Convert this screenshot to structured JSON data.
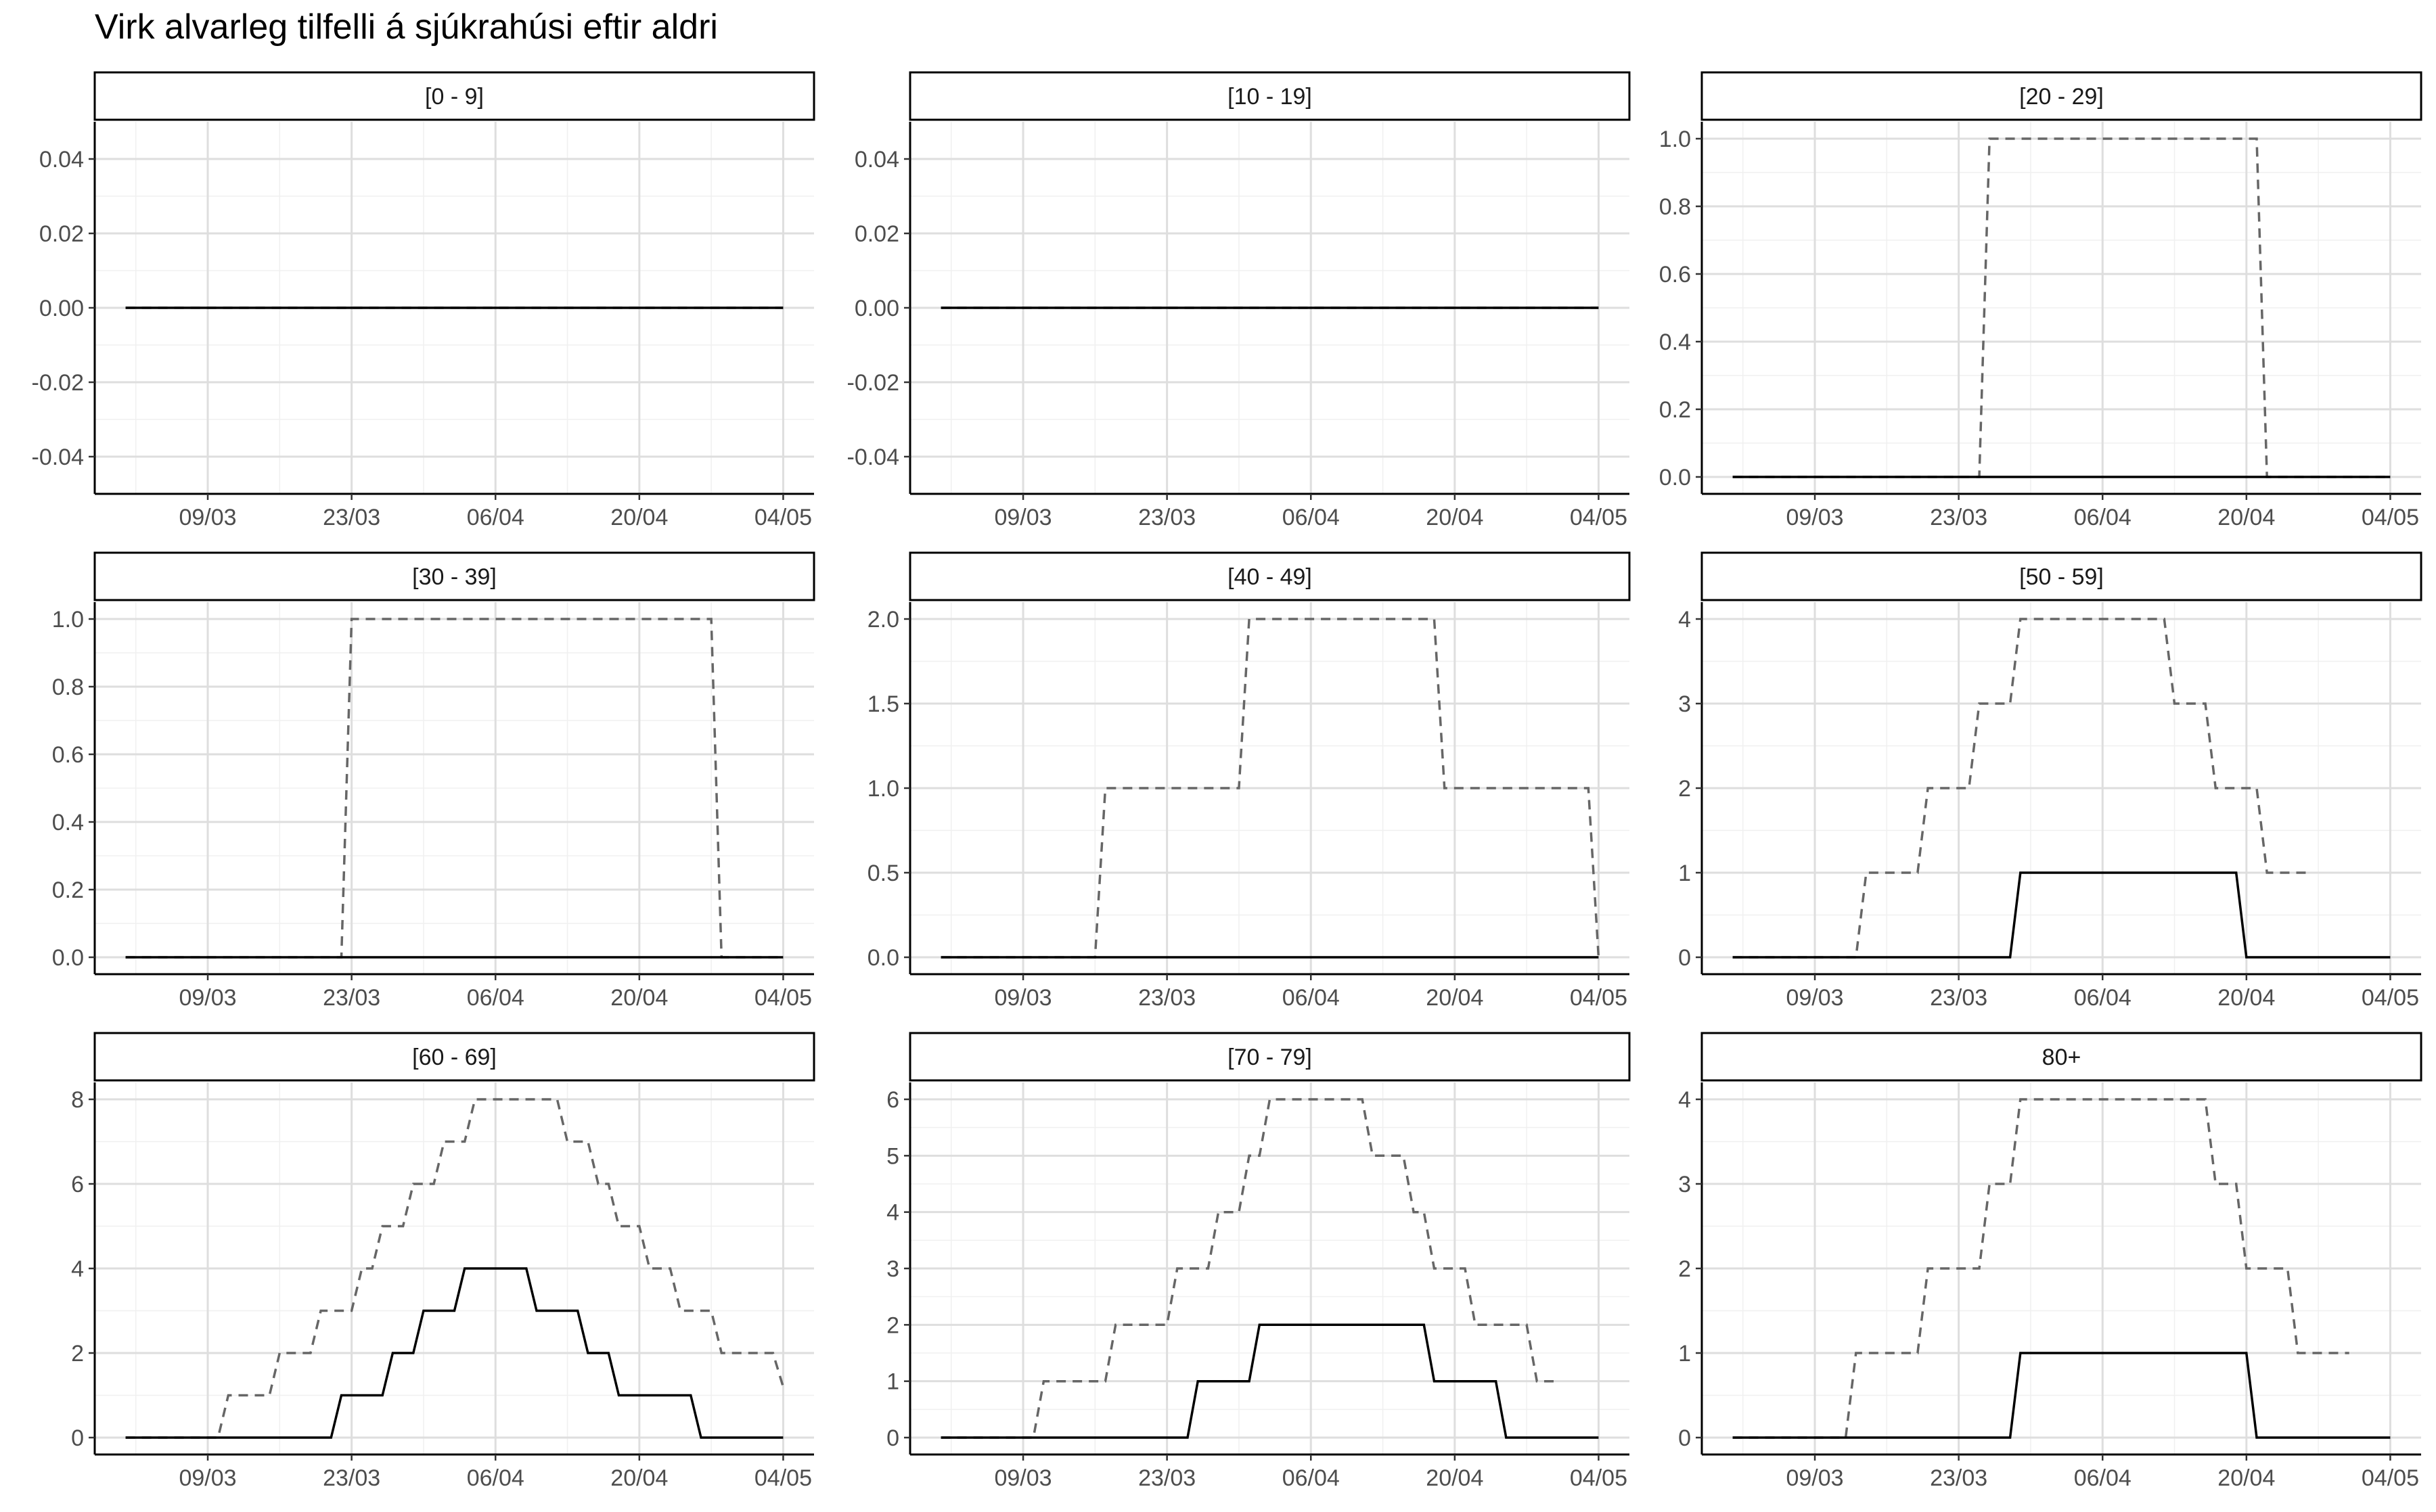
{
  "title": "Virk alvarleg tilfelli á sjúkrahúsi eftir aldri",
  "chart_data": {
    "type": "line",
    "title": "Virk alvarleg tilfelli á sjúkrahúsi eftir aldri",
    "xlabel": "",
    "ylabel": "",
    "x_ticks": [
      "09/03",
      "23/03",
      "06/04",
      "20/04",
      "04/05"
    ],
    "x_tick_days": [
      9,
      23,
      37,
      51,
      65
    ],
    "xlim": [
      -2,
      68
    ],
    "grid": true,
    "legend": "none",
    "series_styles": [
      {
        "key": "dashed",
        "color": "#666666",
        "dash": "solid-dash"
      },
      {
        "key": "solid",
        "color": "#000000",
        "dash": "none"
      }
    ],
    "panels": [
      {
        "label": "[0 - 9]",
        "ylim": [
          -0.05,
          0.05
        ],
        "yticks": [
          "-0.04",
          "-0.02",
          "0.00",
          "0.02",
          "0.04"
        ],
        "ytick_values": [
          -0.04,
          -0.02,
          0.0,
          0.02,
          0.04
        ],
        "dashed": [
          [
            1,
            0
          ],
          [
            65,
            0
          ]
        ],
        "solid": [
          [
            1,
            0
          ],
          [
            65,
            0
          ]
        ]
      },
      {
        "label": "[10 - 19]",
        "ylim": [
          -0.05,
          0.05
        ],
        "yticks": [
          "-0.04",
          "-0.02",
          "0.00",
          "0.02",
          "0.04"
        ],
        "ytick_values": [
          -0.04,
          -0.02,
          0.0,
          0.02,
          0.04
        ],
        "dashed": [
          [
            1,
            0
          ],
          [
            65,
            0
          ]
        ],
        "solid": [
          [
            1,
            0
          ],
          [
            65,
            0
          ]
        ]
      },
      {
        "label": "[20 - 29]",
        "ylim": [
          -0.05,
          1.05
        ],
        "yticks": [
          "0.0",
          "0.2",
          "0.4",
          "0.6",
          "0.8",
          "1.0"
        ],
        "ytick_values": [
          0,
          0.2,
          0.4,
          0.6,
          0.8,
          1.0
        ],
        "dashed": [
          [
            1,
            0
          ],
          [
            25,
            0
          ],
          [
            26,
            1
          ],
          [
            52,
            1
          ],
          [
            53,
            0
          ],
          [
            65,
            0
          ]
        ],
        "solid": [
          [
            1,
            0
          ],
          [
            65,
            0
          ]
        ]
      },
      {
        "label": "[30 - 39]",
        "ylim": [
          -0.05,
          1.05
        ],
        "yticks": [
          "0.0",
          "0.2",
          "0.4",
          "0.6",
          "0.8",
          "1.0"
        ],
        "ytick_values": [
          0,
          0.2,
          0.4,
          0.6,
          0.8,
          1.0
        ],
        "dashed": [
          [
            1,
            0
          ],
          [
            22,
            0
          ],
          [
            23,
            1
          ],
          [
            58,
            1
          ],
          [
            59,
            0
          ],
          [
            65,
            0
          ]
        ],
        "solid": [
          [
            1,
            0
          ],
          [
            65,
            0
          ]
        ]
      },
      {
        "label": "[40 - 49]",
        "ylim": [
          -0.1,
          2.1
        ],
        "yticks": [
          "0.0",
          "0.5",
          "1.0",
          "1.5",
          "2.0"
        ],
        "ytick_values": [
          0,
          0.5,
          1.0,
          1.5,
          2.0
        ],
        "dashed": [
          [
            1,
            0
          ],
          [
            16,
            0
          ],
          [
            17,
            1
          ],
          [
            30,
            1
          ],
          [
            31,
            2
          ],
          [
            49,
            2
          ],
          [
            50,
            1
          ],
          [
            64,
            1
          ],
          [
            65,
            0
          ]
        ],
        "solid": [
          [
            1,
            0
          ],
          [
            65,
            0
          ]
        ]
      },
      {
        "label": "[50 - 59]",
        "ylim": [
          -0.2,
          4.2
        ],
        "yticks": [
          "0",
          "1",
          "2",
          "3",
          "4"
        ],
        "ytick_values": [
          0,
          1,
          2,
          3,
          4
        ],
        "dashed": [
          [
            1,
            0
          ],
          [
            13,
            0
          ],
          [
            14,
            1
          ],
          [
            19,
            1
          ],
          [
            20,
            2
          ],
          [
            24,
            2
          ],
          [
            25,
            3
          ],
          [
            28,
            3
          ],
          [
            29,
            4
          ],
          [
            43,
            4
          ],
          [
            44,
            3
          ],
          [
            47,
            3
          ],
          [
            48,
            2
          ],
          [
            52,
            2
          ],
          [
            53,
            1
          ],
          [
            57,
            1
          ]
        ],
        "solid": [
          [
            1,
            0
          ],
          [
            28,
            0
          ],
          [
            29,
            1
          ],
          [
            50,
            1
          ],
          [
            51,
            0
          ],
          [
            65,
            0
          ]
        ]
      },
      {
        "label": "[60 - 69]",
        "ylim": [
          -0.4,
          8.4
        ],
        "yticks": [
          "0",
          "2",
          "4",
          "6",
          "8"
        ],
        "ytick_values": [
          0,
          2,
          4,
          6,
          8
        ],
        "dashed": [
          [
            1,
            0
          ],
          [
            10,
            0
          ],
          [
            11,
            1
          ],
          [
            15,
            1
          ],
          [
            16,
            2
          ],
          [
            19,
            2
          ],
          [
            20,
            3
          ],
          [
            23,
            3
          ],
          [
            24,
            4
          ],
          [
            25,
            4
          ],
          [
            26,
            5
          ],
          [
            28,
            5
          ],
          [
            29,
            6
          ],
          [
            31,
            6
          ],
          [
            32,
            7
          ],
          [
            34,
            7
          ],
          [
            35,
            8
          ],
          [
            43,
            8
          ],
          [
            44,
            7
          ],
          [
            46,
            7
          ],
          [
            47,
            6
          ],
          [
            48,
            6
          ],
          [
            49,
            5
          ],
          [
            51,
            5
          ],
          [
            52,
            4
          ],
          [
            54,
            4
          ],
          [
            55,
            3
          ],
          [
            58,
            3
          ],
          [
            59,
            2
          ],
          [
            64,
            2
          ],
          [
            65,
            1.2
          ]
        ],
        "solid": [
          [
            1,
            0
          ],
          [
            21,
            0
          ],
          [
            22,
            1
          ],
          [
            26,
            1
          ],
          [
            27,
            2
          ],
          [
            29,
            2
          ],
          [
            30,
            3
          ],
          [
            33,
            3
          ],
          [
            34,
            4
          ],
          [
            40,
            4
          ],
          [
            41,
            3
          ],
          [
            45,
            3
          ],
          [
            46,
            2
          ],
          [
            48,
            2
          ],
          [
            49,
            1
          ],
          [
            56,
            1
          ],
          [
            57,
            0
          ],
          [
            65,
            0
          ]
        ]
      },
      {
        "label": "[70 - 79]",
        "ylim": [
          -0.3,
          6.3
        ],
        "yticks": [
          "0",
          "1",
          "2",
          "3",
          "4",
          "5",
          "6"
        ],
        "ytick_values": [
          0,
          1,
          2,
          3,
          4,
          5,
          6
        ],
        "dashed": [
          [
            1,
            0
          ],
          [
            10,
            0
          ],
          [
            11,
            1
          ],
          [
            17,
            1
          ],
          [
            18,
            2
          ],
          [
            23,
            2
          ],
          [
            24,
            3
          ],
          [
            27,
            3
          ],
          [
            28,
            4
          ],
          [
            30,
            4
          ],
          [
            31,
            5
          ],
          [
            32,
            5
          ],
          [
            33,
            6
          ],
          [
            42,
            6
          ],
          [
            43,
            5
          ],
          [
            46,
            5
          ],
          [
            47,
            4
          ],
          [
            48,
            4
          ],
          [
            49,
            3
          ],
          [
            52,
            3
          ],
          [
            53,
            2
          ],
          [
            58,
            2
          ],
          [
            59,
            1
          ],
          [
            61,
            1
          ]
        ],
        "solid": [
          [
            1,
            0
          ],
          [
            25,
            0
          ],
          [
            26,
            1
          ],
          [
            31,
            1
          ],
          [
            32,
            2
          ],
          [
            48,
            2
          ],
          [
            49,
            1
          ],
          [
            55,
            1
          ],
          [
            56,
            0
          ],
          [
            65,
            0
          ]
        ]
      },
      {
        "label": "80+",
        "ylim": [
          -0.2,
          4.2
        ],
        "yticks": [
          "0",
          "1",
          "2",
          "3",
          "4"
        ],
        "ytick_values": [
          0,
          1,
          2,
          3,
          4
        ],
        "dashed": [
          [
            1,
            0
          ],
          [
            12,
            0
          ],
          [
            13,
            1
          ],
          [
            19,
            1
          ],
          [
            20,
            2
          ],
          [
            25,
            2
          ],
          [
            26,
            3
          ],
          [
            28,
            3
          ],
          [
            29,
            4
          ],
          [
            47,
            4
          ],
          [
            48,
            3
          ],
          [
            50,
            3
          ],
          [
            51,
            2
          ],
          [
            55,
            2
          ],
          [
            56,
            1
          ],
          [
            61,
            1
          ]
        ],
        "solid": [
          [
            1,
            0
          ],
          [
            28,
            0
          ],
          [
            29,
            1
          ],
          [
            51,
            1
          ],
          [
            52,
            0
          ],
          [
            65,
            0
          ]
        ]
      }
    ]
  }
}
